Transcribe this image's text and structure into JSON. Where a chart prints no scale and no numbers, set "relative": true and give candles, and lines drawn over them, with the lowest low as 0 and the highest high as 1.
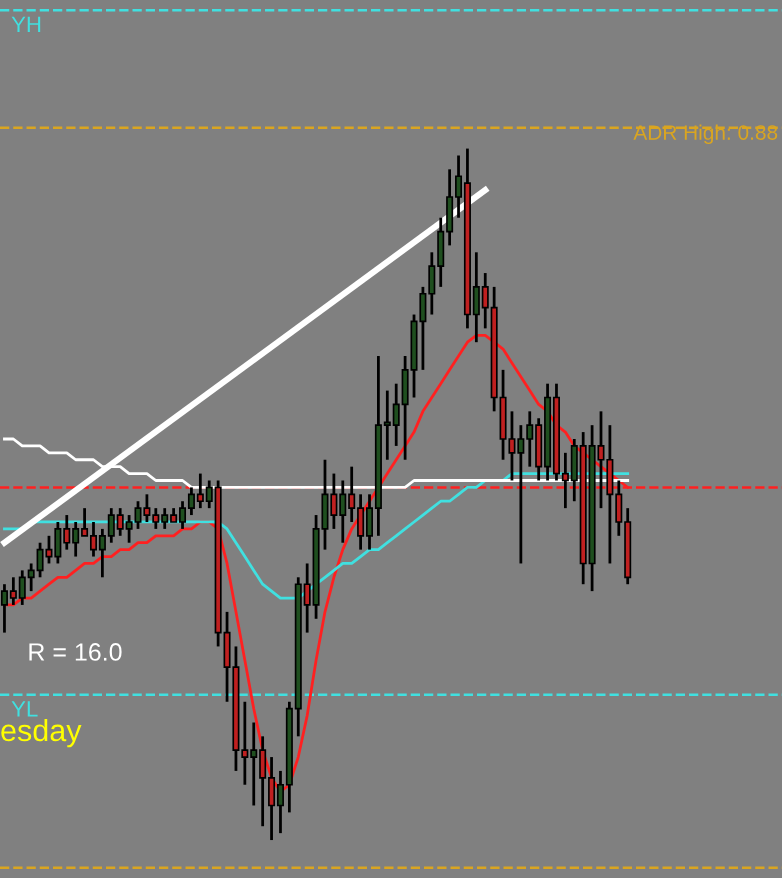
{
  "chart_data": {
    "type": "candlestick",
    "relative": true,
    "categories": [
      null,
      null,
      null,
      null,
      null,
      null,
      null,
      null,
      null,
      null,
      null,
      null,
      null,
      null,
      null,
      null,
      null,
      null,
      null,
      null,
      null,
      null,
      null,
      null,
      null,
      null,
      null,
      null,
      null,
      null,
      null,
      null,
      null,
      null,
      null,
      null,
      null,
      null,
      null,
      null,
      null,
      null,
      null,
      null,
      null,
      null,
      null,
      null,
      null,
      null,
      null,
      null,
      null,
      null,
      null,
      null,
      null,
      null,
      null,
      null,
      null,
      null,
      null,
      null,
      null,
      null,
      null,
      null,
      null,
      null,
      null
    ],
    "ohlc": [
      [
        0.34,
        0.37,
        0.3,
        0.36
      ],
      [
        0.36,
        0.38,
        0.34,
        0.35
      ],
      [
        0.35,
        0.39,
        0.34,
        0.38
      ],
      [
        0.38,
        0.4,
        0.36,
        0.39
      ],
      [
        0.39,
        0.43,
        0.38,
        0.42
      ],
      [
        0.42,
        0.44,
        0.4,
        0.41
      ],
      [
        0.41,
        0.46,
        0.4,
        0.45
      ],
      [
        0.45,
        0.47,
        0.42,
        0.43
      ],
      [
        0.43,
        0.46,
        0.41,
        0.45
      ],
      [
        0.45,
        0.48,
        0.44,
        0.44
      ],
      [
        0.44,
        0.46,
        0.41,
        0.42
      ],
      [
        0.42,
        0.45,
        0.38,
        0.44
      ],
      [
        0.44,
        0.48,
        0.43,
        0.47
      ],
      [
        0.47,
        0.48,
        0.44,
        0.45
      ],
      [
        0.45,
        0.47,
        0.43,
        0.46
      ],
      [
        0.46,
        0.49,
        0.45,
        0.48
      ],
      [
        0.48,
        0.5,
        0.46,
        0.47
      ],
      [
        0.47,
        0.48,
        0.45,
        0.46
      ],
      [
        0.46,
        0.48,
        0.45,
        0.47
      ],
      [
        0.47,
        0.48,
        0.46,
        0.46
      ],
      [
        0.46,
        0.49,
        0.45,
        0.48
      ],
      [
        0.48,
        0.51,
        0.47,
        0.5
      ],
      [
        0.5,
        0.53,
        0.48,
        0.49
      ],
      [
        0.49,
        0.52,
        0.48,
        0.51
      ],
      [
        0.51,
        0.52,
        0.28,
        0.3
      ],
      [
        0.3,
        0.33,
        0.2,
        0.25
      ],
      [
        0.25,
        0.28,
        0.1,
        0.13
      ],
      [
        0.13,
        0.2,
        0.08,
        0.12
      ],
      [
        0.12,
        0.17,
        0.05,
        0.13
      ],
      [
        0.13,
        0.15,
        0.02,
        0.09
      ],
      [
        0.09,
        0.12,
        0.0,
        0.05
      ],
      [
        0.05,
        0.1,
        0.01,
        0.08
      ],
      [
        0.08,
        0.2,
        0.04,
        0.19
      ],
      [
        0.19,
        0.38,
        0.15,
        0.37
      ],
      [
        0.37,
        0.4,
        0.3,
        0.34
      ],
      [
        0.34,
        0.47,
        0.32,
        0.45
      ],
      [
        0.45,
        0.55,
        0.42,
        0.5
      ],
      [
        0.5,
        0.53,
        0.45,
        0.47
      ],
      [
        0.47,
        0.52,
        0.43,
        0.5
      ],
      [
        0.5,
        0.54,
        0.46,
        0.48
      ],
      [
        0.48,
        0.5,
        0.42,
        0.44
      ],
      [
        0.44,
        0.5,
        0.42,
        0.48
      ],
      [
        0.48,
        0.7,
        0.44,
        0.6
      ],
      [
        0.6,
        0.65,
        0.55,
        0.6
      ],
      [
        0.6,
        0.66,
        0.57,
        0.63
      ],
      [
        0.63,
        0.7,
        0.55,
        0.68
      ],
      [
        0.68,
        0.76,
        0.64,
        0.75
      ],
      [
        0.75,
        0.8,
        0.68,
        0.79
      ],
      [
        0.79,
        0.85,
        0.76,
        0.83
      ],
      [
        0.83,
        0.9,
        0.8,
        0.88
      ],
      [
        0.88,
        0.97,
        0.86,
        0.93
      ],
      [
        0.93,
        0.99,
        0.9,
        0.96
      ],
      [
        0.95,
        1.0,
        0.74,
        0.76
      ],
      [
        0.76,
        0.85,
        0.72,
        0.8
      ],
      [
        0.8,
        0.82,
        0.74,
        0.77
      ],
      [
        0.77,
        0.8,
        0.62,
        0.64
      ],
      [
        0.64,
        0.68,
        0.55,
        0.58
      ],
      [
        0.58,
        0.62,
        0.52,
        0.56
      ],
      [
        0.56,
        0.6,
        0.4,
        0.58
      ],
      [
        0.58,
        0.62,
        0.54,
        0.6
      ],
      [
        0.6,
        0.61,
        0.52,
        0.54
      ],
      [
        0.54,
        0.66,
        0.52,
        0.64
      ],
      [
        0.64,
        0.66,
        0.52,
        0.53
      ],
      [
        0.53,
        0.56,
        0.48,
        0.52
      ],
      [
        0.52,
        0.58,
        0.49,
        0.57
      ],
      [
        0.57,
        0.59,
        0.37,
        0.4
      ],
      [
        0.4,
        0.6,
        0.36,
        0.57
      ],
      [
        0.57,
        0.62,
        0.48,
        0.55
      ],
      [
        0.55,
        0.6,
        0.4,
        0.5
      ],
      [
        0.5,
        0.52,
        0.44,
        0.46
      ],
      [
        0.46,
        0.48,
        0.37,
        0.38
      ]
    ],
    "series": [
      {
        "type": "line",
        "color": "#ff2020",
        "values": [
          0.34,
          0.34,
          0.35,
          0.35,
          0.36,
          0.37,
          0.38,
          0.38,
          0.39,
          0.4,
          0.4,
          0.41,
          0.41,
          0.42,
          0.42,
          0.43,
          0.43,
          0.44,
          0.44,
          0.44,
          0.45,
          0.45,
          0.46,
          0.46,
          0.45,
          0.4,
          0.33,
          0.26,
          0.19,
          0.13,
          0.09,
          0.07,
          0.08,
          0.12,
          0.18,
          0.26,
          0.33,
          0.38,
          0.42,
          0.45,
          0.47,
          0.49,
          0.51,
          0.53,
          0.55,
          0.57,
          0.59,
          0.62,
          0.64,
          0.66,
          0.68,
          0.7,
          0.72,
          0.73,
          0.73,
          0.72,
          0.71,
          0.69,
          0.67,
          0.65,
          0.63,
          0.62,
          0.6,
          0.59,
          0.57,
          0.56,
          0.55,
          0.54,
          0.53,
          0.52,
          0.51
        ]
      },
      {
        "type": "line",
        "color": "#40e0e0",
        "values": [
          0.45,
          0.45,
          0.45,
          0.46,
          0.46,
          0.46,
          0.46,
          0.46,
          0.46,
          0.46,
          0.46,
          0.46,
          0.46,
          0.46,
          0.46,
          0.46,
          0.46,
          0.46,
          0.46,
          0.46,
          0.46,
          0.46,
          0.46,
          0.46,
          0.46,
          0.45,
          0.43,
          0.41,
          0.39,
          0.37,
          0.36,
          0.35,
          0.35,
          0.35,
          0.36,
          0.37,
          0.38,
          0.39,
          0.4,
          0.4,
          0.41,
          0.42,
          0.42,
          0.43,
          0.44,
          0.45,
          0.46,
          0.47,
          0.48,
          0.49,
          0.49,
          0.5,
          0.51,
          0.51,
          0.52,
          0.52,
          0.52,
          0.53,
          0.53,
          0.53,
          0.53,
          0.53,
          0.53,
          0.53,
          0.53,
          0.53,
          0.53,
          0.53,
          0.53,
          0.53,
          0.53
        ]
      },
      {
        "type": "line",
        "color": "#ffffff",
        "values": [
          0.58,
          0.58,
          0.57,
          0.57,
          0.57,
          0.56,
          0.56,
          0.56,
          0.55,
          0.55,
          0.55,
          0.54,
          0.54,
          0.54,
          0.53,
          0.53,
          0.53,
          0.52,
          0.52,
          0.52,
          0.52,
          0.51,
          0.51,
          0.51,
          0.51,
          0.51,
          0.51,
          0.51,
          0.51,
          0.51,
          0.51,
          0.51,
          0.51,
          0.51,
          0.51,
          0.51,
          0.51,
          0.51,
          0.51,
          0.51,
          0.51,
          0.51,
          0.51,
          0.51,
          0.51,
          0.51,
          0.52,
          0.52,
          0.52,
          0.52,
          0.52,
          0.52,
          0.52,
          0.52,
          0.52,
          0.52,
          0.52,
          0.52,
          0.52,
          0.52,
          0.52,
          0.52,
          0.52,
          0.52,
          0.52,
          0.52,
          0.52,
          0.52,
          0.52,
          0.52,
          0.52
        ]
      },
      {
        "type": "line",
        "color": "#ffffff",
        "values": [
          0.43,
          null,
          null,
          null,
          null,
          null,
          null,
          null,
          null,
          null,
          null,
          null,
          null,
          null,
          null,
          null,
          null,
          null,
          null,
          null,
          null,
          null,
          null,
          null,
          null,
          null,
          null,
          null,
          null,
          null,
          null,
          null,
          null,
          null,
          null,
          null,
          null,
          null,
          null,
          null,
          null,
          null,
          null,
          null,
          null,
          null,
          null,
          null,
          null,
          null,
          null,
          null,
          null,
          null,
          0.94,
          null,
          null,
          null,
          null,
          null,
          null,
          null,
          null,
          null,
          null,
          null,
          null,
          null,
          null,
          null,
          null
        ]
      }
    ],
    "ref_lines": [
      {
        "axis": "y",
        "value": 1.2,
        "label": "YH",
        "color": "#40e0e0",
        "line_style": "dashed"
      },
      {
        "axis": "y",
        "value": 1.03,
        "label": null,
        "color": "#daa520",
        "line_style": "dashed"
      },
      {
        "axis": "y",
        "value": 0.51,
        "label": null,
        "color": "#ff2020",
        "line_style": "dashed"
      },
      {
        "axis": "y",
        "value": 0.21,
        "label": "YL",
        "color": "#40e0e0",
        "line_style": "dashed"
      },
      {
        "axis": "y",
        "value": -0.04,
        "label": null,
        "color": "#daa520",
        "line_style": "dashed"
      }
    ],
    "annotations": [
      "R = 16.0",
      "esday",
      "ADR High: 0.88"
    ]
  }
}
